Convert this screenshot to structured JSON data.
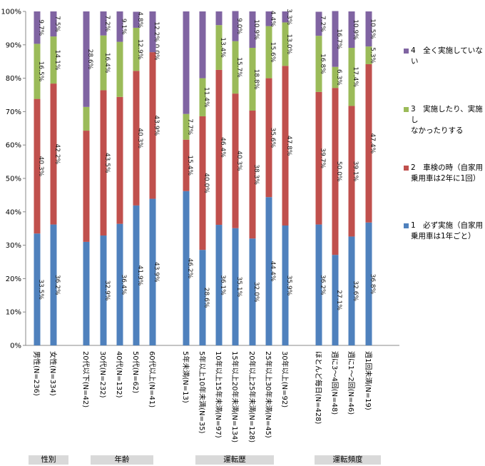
{
  "chart_data": {
    "type": "bar",
    "stacked": true,
    "percent": true,
    "ylim": [
      0,
      100
    ],
    "yticks": [
      "0%",
      "10%",
      "20%",
      "30%",
      "40%",
      "50%",
      "60%",
      "70%",
      "80%",
      "90%",
      "100%"
    ],
    "grid": false,
    "legend_position": "right",
    "categories": [
      "男性(N=236)",
      "女性(N=334)",
      "20代以下(N=42)",
      "30代(N=232)",
      "40代(N=132)",
      "50代(N=62)",
      "60代以上(N=41)",
      "5年未満(N=13)",
      "5年以上10年未満(N=35)",
      "10年以上15年未満(N=97)",
      "15年以上20年未満(N=134)",
      "20年以上25年未満(N=128)",
      "25年以上30年未満(N=45)",
      "30年以上(N=92)",
      "ほとんど毎日(N=428)",
      "週に3～4回(N=48)",
      "週に1～2回(N=46)",
      "週1回未満(N=19)"
    ],
    "groups": [
      {
        "label": "性別",
        "start": 0,
        "end": 1
      },
      {
        "label": "年齢",
        "start": 2,
        "end": 6
      },
      {
        "label": "運転歴",
        "start": 7,
        "end": 13
      },
      {
        "label": "運転頻度",
        "start": 14,
        "end": 17
      }
    ],
    "series": [
      {
        "name": "1　必ず実施（自家用乗用車は1年ごと）",
        "color": "#4f81bd",
        "values": [
          33.5,
          36.2,
          31.0,
          32.9,
          36.4,
          41.9,
          43.9,
          46.2,
          28.6,
          36.1,
          35.1,
          32.0,
          44.4,
          35.9,
          36.2,
          27.1,
          32.6,
          36.8
        ],
        "labels": [
          "33.5%",
          "36.2%",
          "",
          "32.9%",
          "36.4%",
          "41.9%",
          "43.9%",
          "46.2%",
          "28.6%",
          "36.1%",
          "35.1%",
          "32.0%",
          "44.4%",
          "35.9%",
          "36.2%",
          "27.1%",
          "32.6%",
          "36.8%"
        ]
      },
      {
        "name": "2　車検の時（自家用乗用車は2年に1回）",
        "color": "#c0504d",
        "values": [
          40.3,
          42.2,
          33.3,
          43.5,
          38.0,
          40.3,
          43.9,
          15.4,
          40.0,
          46.4,
          40.3,
          38.3,
          35.6,
          47.8,
          39.7,
          50.0,
          39.1,
          47.4
        ],
        "labels": [
          "40.3%",
          "42.2%",
          "",
          "43.5%",
          "",
          "40.3%",
          "43.9%",
          "15.4%",
          "40.0%",
          "46.4%",
          "40.3%",
          "38.3%",
          "35.6%",
          "47.8%",
          "39.7%",
          "50.0%",
          "39.1%",
          "47.4%"
        ]
      },
      {
        "name": "3　実施したり、実施しなかったりする",
        "color": "#9bbb59",
        "values": [
          16.5,
          14.1,
          7.1,
          16.4,
          16.5,
          12.9,
          0.0,
          7.7,
          11.4,
          13.4,
          15.7,
          18.8,
          15.6,
          13.0,
          16.8,
          6.3,
          17.4,
          5.3
        ],
        "labels": [
          "16.5%",
          "14.1%",
          "",
          "16.4%",
          "",
          "12.9%",
          "0.0%",
          "7.7%",
          "11.4%",
          "13.4%",
          "15.7%",
          "18.8%",
          "15.6%",
          "13.0%",
          "16.8%",
          "6.3%",
          "17.4%",
          "5.3%"
        ]
      },
      {
        "name": "4　全く実施していない",
        "color": "#8064a2",
        "values": [
          9.7,
          7.5,
          28.6,
          7.2,
          9.1,
          4.8,
          12.2,
          30.7,
          20.0,
          4.1,
          9.0,
          10.9,
          4.4,
          3.3,
          7.2,
          16.7,
          10.9,
          10.5
        ],
        "labels": [
          "9.7%",
          "7.5%",
          "28.6%",
          "7.2%",
          "9.1%",
          "4.8%",
          "12.2%",
          "",
          "",
          "",
          "9.0%",
          "10.9%",
          "4.4%",
          "3.3%",
          "7.2%",
          "16.7%",
          "10.9%",
          "10.5%"
        ]
      }
    ]
  },
  "legend": {
    "items": [
      {
        "color": "#8064a2",
        "line1": "4　全く実施していな",
        "line2": "い"
      },
      {
        "color": "#9bbb59",
        "line1": "3　実施したり、実施し",
        "line2": "なかったりする"
      },
      {
        "color": "#c0504d",
        "line1": "2　車検の時（自家用",
        "line2": "乗用車は2年に1回）"
      },
      {
        "color": "#4f81bd",
        "line1": "1　必ず実施（自家用",
        "line2": "乗用車は1年ごと）"
      }
    ]
  }
}
